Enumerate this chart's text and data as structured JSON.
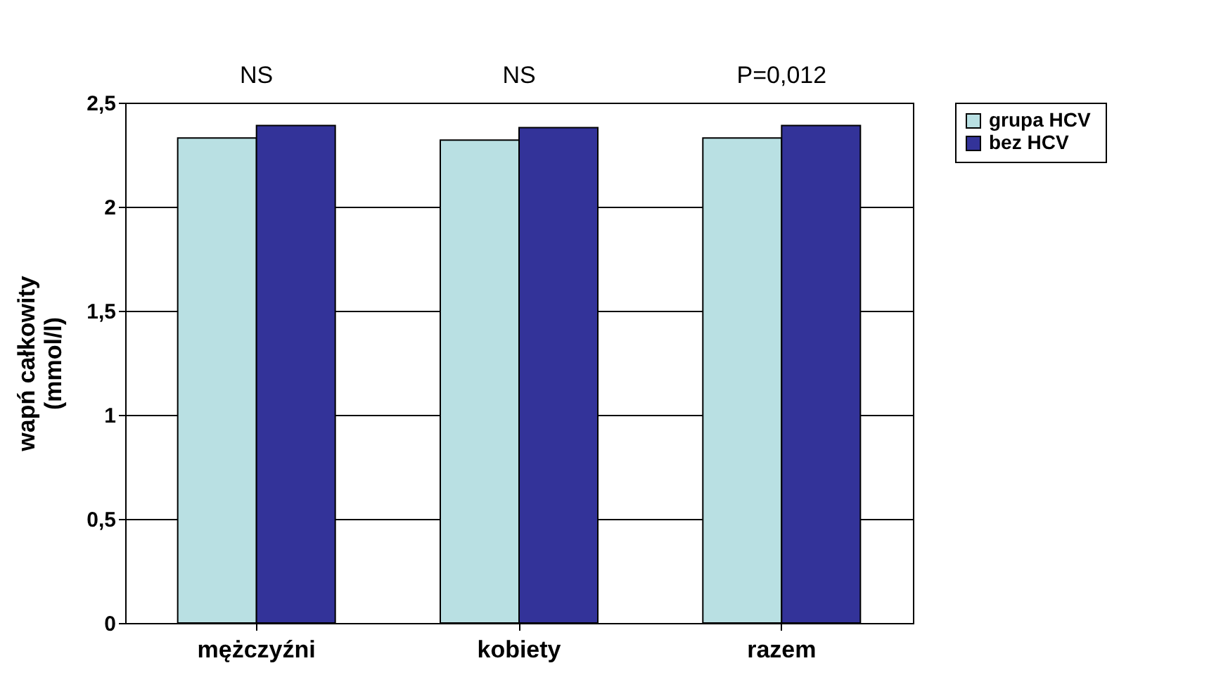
{
  "chart_data": {
    "type": "bar",
    "ylabel": "wapń całkowity\n(mmol/l)",
    "categories": [
      "mężczyźni",
      "kobiety",
      "razem"
    ],
    "series": [
      {
        "name": "grupa  HCV",
        "color": "#b9e0e3",
        "values": [
          2.33,
          2.32,
          2.33
        ]
      },
      {
        "name": "bez HCV",
        "color": "#333399",
        "values": [
          2.39,
          2.38,
          2.39
        ]
      }
    ],
    "ylim": [
      0,
      2.5
    ],
    "yticks": [
      0,
      {
        "value": 0.5,
        "label": "0,5"
      },
      1,
      {
        "value": 1.5,
        "label": "1,5"
      },
      2,
      {
        "value": 2.5,
        "label": "2,5"
      }
    ],
    "grid": "y",
    "legend": "top right",
    "annotations": [
      "NS",
      "NS",
      "P=0,012"
    ]
  }
}
